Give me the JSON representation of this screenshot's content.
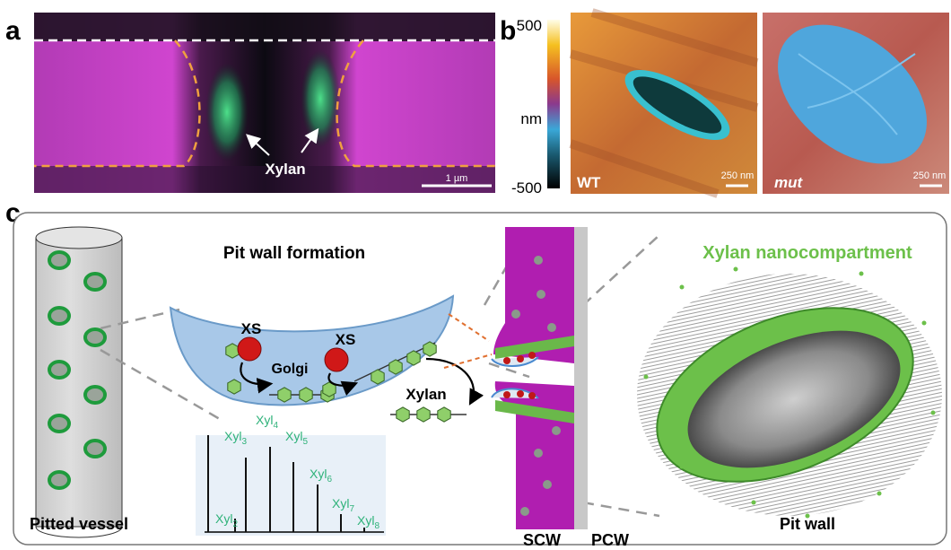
{
  "panel_a": {
    "label": "a",
    "arrow_label": "Xylan",
    "scale_bar": "1 µm"
  },
  "panel_b": {
    "label": "b",
    "colorbar": {
      "max": "500",
      "unit": "nm",
      "min": "-500"
    },
    "images": [
      {
        "label": "WT",
        "scale_bar": "250 nm"
      },
      {
        "label": "mut",
        "scale_bar": "250 nm"
      }
    ]
  },
  "panel_c": {
    "label": "c",
    "left_title": "Pit wall formation",
    "right_title": "Xylan nanocompartment",
    "enzyme_labels": [
      "XS",
      "XS"
    ],
    "golgi": "Golgi",
    "product": "Xylan",
    "captions": {
      "vessel": "Pitted vessel",
      "scw": "SCW",
      "pcw": "PCW",
      "pit_wall": "Pit wall"
    },
    "spectrum_peaks": [
      {
        "base": "Xyl",
        "sub": "2"
      },
      {
        "base": "Xyl",
        "sub": "3"
      },
      {
        "base": "Xyl",
        "sub": "4"
      },
      {
        "base": "Xyl",
        "sub": "5"
      },
      {
        "base": "Xyl",
        "sub": "6"
      },
      {
        "base": "Xyl",
        "sub": "7"
      },
      {
        "base": "Xyl",
        "sub": "8"
      }
    ]
  }
}
